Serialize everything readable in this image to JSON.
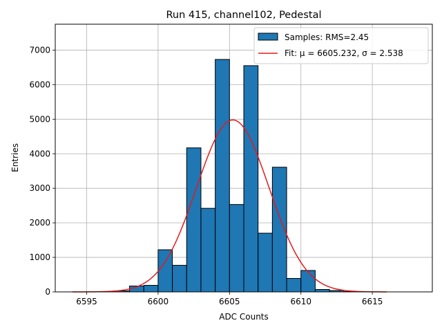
{
  "chart_data": {
    "type": "histogram",
    "title": "Run 415, channel102, Pedestal",
    "xlabel": "ADC Counts",
    "ylabel": "Entries",
    "xlim": [
      6592.8,
      6619.2
    ],
    "ylim": [
      0,
      7750
    ],
    "xticks": [
      6595,
      6600,
      6605,
      6610,
      6615
    ],
    "yticks": [
      0,
      1000,
      2000,
      3000,
      4000,
      5000,
      6000,
      7000
    ],
    "grid": true,
    "legend_position": "top-right",
    "bar_color": "#1f77b4",
    "fit_color": "#e41a1c",
    "bins": [
      {
        "x0": 6596,
        "x1": 6597,
        "value": 10
      },
      {
        "x0": 6597,
        "x1": 6598,
        "value": 30
      },
      {
        "x0": 6598,
        "x1": 6599,
        "value": 170
      },
      {
        "x0": 6599,
        "x1": 6600,
        "value": 190
      },
      {
        "x0": 6600,
        "x1": 6601,
        "value": 1220
      },
      {
        "x0": 6601,
        "x1": 6602,
        "value": 770
      },
      {
        "x0": 6602,
        "x1": 6603,
        "value": 4170
      },
      {
        "x0": 6603,
        "x1": 6604,
        "value": 2420
      },
      {
        "x0": 6604,
        "x1": 6605,
        "value": 6730
      },
      {
        "x0": 6605,
        "x1": 6606,
        "value": 2530
      },
      {
        "x0": 6606,
        "x1": 6607,
        "value": 6550
      },
      {
        "x0": 6607,
        "x1": 6608,
        "value": 1700
      },
      {
        "x0": 6608,
        "x1": 6609,
        "value": 3610
      },
      {
        "x0": 6609,
        "x1": 6610,
        "value": 390
      },
      {
        "x0": 6610,
        "x1": 6611,
        "value": 620
      },
      {
        "x0": 6611,
        "x1": 6612,
        "value": 70
      },
      {
        "x0": 6612,
        "x1": 6613,
        "value": 40
      },
      {
        "x0": 6613,
        "x1": 6614,
        "value": 10
      }
    ],
    "fit": {
      "mu": 6605.232,
      "sigma": 2.538,
      "amplitude": 4980,
      "x_range": [
        6594,
        6616
      ]
    },
    "legend": [
      {
        "label": "Samples: RMS=2.45",
        "kind": "bar"
      },
      {
        "label": "Fit: μ = 6605.232, σ = 2.538",
        "kind": "line"
      }
    ]
  }
}
